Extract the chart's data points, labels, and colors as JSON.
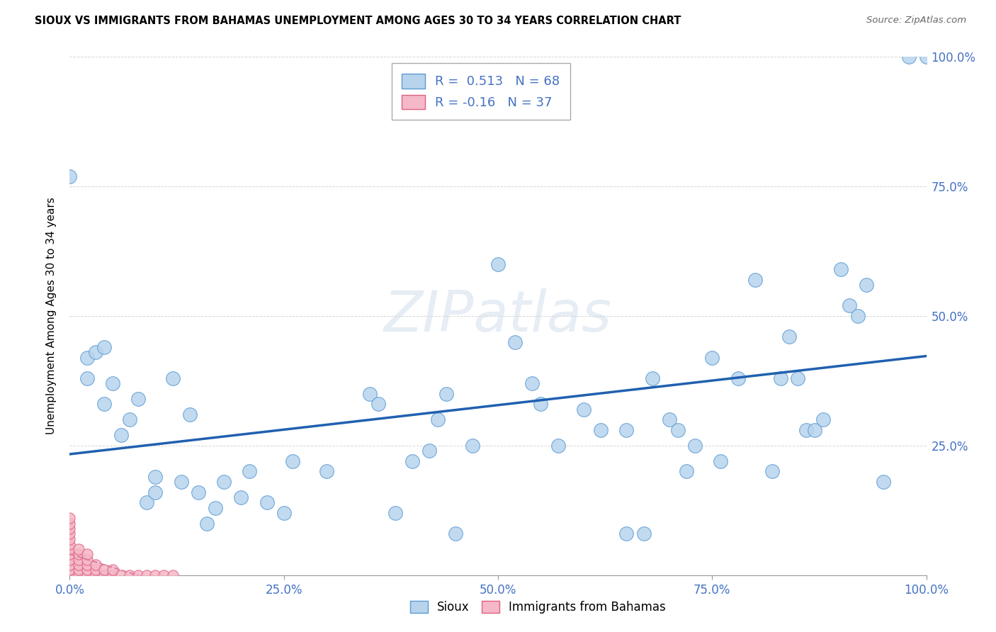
{
  "title": "SIOUX VS IMMIGRANTS FROM BAHAMAS UNEMPLOYMENT AMONG AGES 30 TO 34 YEARS CORRELATION CHART",
  "source": "Source: ZipAtlas.com",
  "ylabel": "Unemployment Among Ages 30 to 34 years",
  "watermark": "ZIPatlas",
  "sioux_R": 0.513,
  "sioux_N": 68,
  "bahamas_R": -0.16,
  "bahamas_N": 37,
  "xlim": [
    0,
    1.0
  ],
  "ylim": [
    0,
    1.0
  ],
  "xticks": [
    0.0,
    0.25,
    0.5,
    0.75,
    1.0
  ],
  "xticklabels": [
    "0.0%",
    "25.0%",
    "50.0%",
    "75.0%",
    "100.0%"
  ],
  "yticks": [
    0.0,
    0.25,
    0.5,
    0.75,
    1.0
  ],
  "yticklabels_right": [
    "",
    "25.0%",
    "50.0%",
    "75.0%",
    "100.0%"
  ],
  "sioux_color": "#b8d4ed",
  "sioux_edge_color": "#5b9bd5",
  "bahamas_color": "#f4b8c8",
  "bahamas_edge_color": "#e06080",
  "line_sioux_color": "#2060b0",
  "line_bahamas_color": "#e080a0",
  "tick_color": "#4472c4",
  "background_color": "#ffffff",
  "sioux_scatter": [
    [
      0.0,
      0.77
    ],
    [
      0.02,
      0.42
    ],
    [
      0.02,
      0.38
    ],
    [
      0.03,
      0.43
    ],
    [
      0.04,
      0.44
    ],
    [
      0.04,
      0.33
    ],
    [
      0.05,
      0.37
    ],
    [
      0.06,
      0.27
    ],
    [
      0.07,
      0.3
    ],
    [
      0.08,
      0.34
    ],
    [
      0.09,
      0.14
    ],
    [
      0.1,
      0.19
    ],
    [
      0.1,
      0.16
    ],
    [
      0.12,
      0.38
    ],
    [
      0.13,
      0.18
    ],
    [
      0.14,
      0.31
    ],
    [
      0.15,
      0.16
    ],
    [
      0.16,
      0.1
    ],
    [
      0.17,
      0.13
    ],
    [
      0.18,
      0.18
    ],
    [
      0.2,
      0.15
    ],
    [
      0.21,
      0.2
    ],
    [
      0.23,
      0.14
    ],
    [
      0.25,
      0.12
    ],
    [
      0.26,
      0.22
    ],
    [
      0.3,
      0.2
    ],
    [
      0.35,
      0.35
    ],
    [
      0.36,
      0.33
    ],
    [
      0.38,
      0.12
    ],
    [
      0.4,
      0.22
    ],
    [
      0.42,
      0.24
    ],
    [
      0.43,
      0.3
    ],
    [
      0.44,
      0.35
    ],
    [
      0.45,
      0.08
    ],
    [
      0.47,
      0.25
    ],
    [
      0.5,
      0.6
    ],
    [
      0.52,
      0.45
    ],
    [
      0.54,
      0.37
    ],
    [
      0.55,
      0.33
    ],
    [
      0.57,
      0.25
    ],
    [
      0.6,
      0.32
    ],
    [
      0.62,
      0.28
    ],
    [
      0.65,
      0.28
    ],
    [
      0.65,
      0.08
    ],
    [
      0.67,
      0.08
    ],
    [
      0.68,
      0.38
    ],
    [
      0.7,
      0.3
    ],
    [
      0.71,
      0.28
    ],
    [
      0.72,
      0.2
    ],
    [
      0.73,
      0.25
    ],
    [
      0.75,
      0.42
    ],
    [
      0.76,
      0.22
    ],
    [
      0.78,
      0.38
    ],
    [
      0.8,
      0.57
    ],
    [
      0.82,
      0.2
    ],
    [
      0.83,
      0.38
    ],
    [
      0.84,
      0.46
    ],
    [
      0.85,
      0.38
    ],
    [
      0.86,
      0.28
    ],
    [
      0.87,
      0.28
    ],
    [
      0.88,
      0.3
    ],
    [
      0.9,
      0.59
    ],
    [
      0.91,
      0.52
    ],
    [
      0.92,
      0.5
    ],
    [
      0.93,
      0.56
    ],
    [
      0.95,
      0.18
    ],
    [
      0.98,
      1.0
    ],
    [
      1.0,
      1.0
    ]
  ],
  "bahamas_scatter": [
    [
      0.0,
      0.0
    ],
    [
      0.0,
      0.01
    ],
    [
      0.0,
      0.02
    ],
    [
      0.0,
      0.03
    ],
    [
      0.0,
      0.04
    ],
    [
      0.0,
      0.05
    ],
    [
      0.0,
      0.06
    ],
    [
      0.0,
      0.07
    ],
    [
      0.0,
      0.08
    ],
    [
      0.0,
      0.09
    ],
    [
      0.0,
      0.1
    ],
    [
      0.0,
      0.11
    ],
    [
      0.01,
      0.0
    ],
    [
      0.01,
      0.01
    ],
    [
      0.01,
      0.02
    ],
    [
      0.01,
      0.03
    ],
    [
      0.01,
      0.04
    ],
    [
      0.01,
      0.05
    ],
    [
      0.02,
      0.0
    ],
    [
      0.02,
      0.01
    ],
    [
      0.02,
      0.02
    ],
    [
      0.02,
      0.03
    ],
    [
      0.02,
      0.04
    ],
    [
      0.03,
      0.0
    ],
    [
      0.03,
      0.01
    ],
    [
      0.03,
      0.02
    ],
    [
      0.04,
      0.0
    ],
    [
      0.04,
      0.01
    ],
    [
      0.05,
      0.0
    ],
    [
      0.05,
      0.01
    ],
    [
      0.06,
      0.0
    ],
    [
      0.07,
      0.0
    ],
    [
      0.08,
      0.0
    ],
    [
      0.09,
      0.0
    ],
    [
      0.1,
      0.0
    ],
    [
      0.11,
      0.0
    ],
    [
      0.12,
      0.0
    ]
  ]
}
